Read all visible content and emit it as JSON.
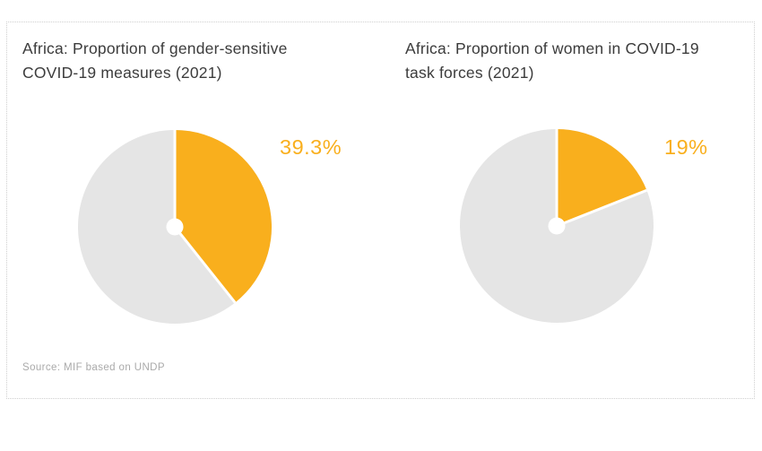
{
  "page": {
    "background": "#FFFFFF"
  },
  "frame": {
    "border_style": "dotted",
    "border_color": "#CFCFCF"
  },
  "colors": {
    "accent_orange": "#F9AF1D",
    "remainder_gray": "#E5E5E5",
    "title_text": "#3C3C3C",
    "source_text": "#AAAAAA",
    "slice_separator": "#FFFFFF"
  },
  "source_note": "Source: MIF based on UNDP",
  "chart_data": [
    {
      "type": "pie",
      "title": "Africa: Proportion of gender-sensitive\nCOVID-19 measures (2021)",
      "values": [
        39.3,
        60.7
      ],
      "colors": [
        "#F9AF1D",
        "#E5E5E5"
      ],
      "data_label": "39.3%",
      "data_label_color": "#F9AF1D",
      "start_angle": "top",
      "direction": "clockwise",
      "center_hole": true,
      "legend": "none"
    },
    {
      "type": "pie",
      "title": "Africa: Proportion of women in COVID-19\ntask forces (2021)",
      "values": [
        19,
        81
      ],
      "colors": [
        "#F9AF1D",
        "#E5E5E5"
      ],
      "data_label": "19%",
      "data_label_color": "#F9AF1D",
      "start_angle": "top",
      "direction": "clockwise",
      "center_hole": true,
      "legend": "none"
    }
  ]
}
